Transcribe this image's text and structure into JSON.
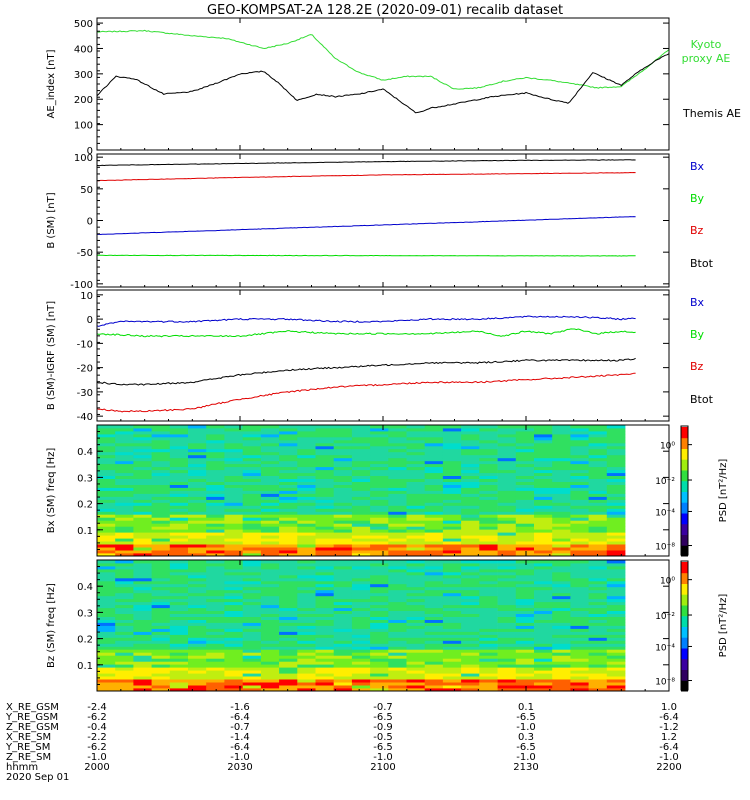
{
  "title": "GEO-KOMPSAT-2A 128.2E (2020-09-01) recalib dataset",
  "colors": {
    "black": "#000000",
    "red": "#e00000",
    "green": "#00dd00",
    "blue": "#0000cc",
    "kyoto": "#33dd33"
  },
  "chart_data": [
    {
      "type": "line",
      "ylabel": "AE_index [nT]",
      "ylim": [
        0,
        520
      ],
      "yticks": [
        0,
        100,
        200,
        300,
        400,
        500
      ],
      "xlim": [
        0,
        120
      ],
      "series": [
        {
          "name": "Kyoto proxy AE",
          "color": "#33dd33",
          "x": [
            0,
            10,
            20,
            27,
            35,
            40,
            45,
            50,
            55,
            60,
            65,
            70,
            75,
            80,
            85,
            90,
            95,
            100,
            105,
            110,
            115,
            120
          ],
          "y": [
            465,
            470,
            450,
            440,
            400,
            420,
            455,
            360,
            305,
            275,
            290,
            290,
            240,
            245,
            270,
            285,
            275,
            260,
            245,
            250,
            320,
            395
          ]
        },
        {
          "name": "Themis AE",
          "color": "#000000",
          "x": [
            0,
            4,
            8,
            14,
            20,
            26,
            30,
            35,
            38,
            42,
            46,
            50,
            55,
            60,
            63,
            67,
            70,
            76,
            83,
            90,
            95,
            99,
            104,
            110,
            113,
            117,
            120
          ],
          "y": [
            215,
            290,
            280,
            220,
            230,
            270,
            300,
            310,
            265,
            195,
            220,
            210,
            220,
            240,
            200,
            145,
            165,
            185,
            210,
            225,
            200,
            185,
            305,
            255,
            300,
            350,
            380
          ]
        }
      ],
      "legend": [
        {
          "text": "Kyoto",
          "color": "#33dd33"
        },
        {
          "text": "proxy AE",
          "color": "#33dd33"
        },
        {
          "text": "Themis AE",
          "color": "#000000"
        }
      ]
    },
    {
      "type": "line",
      "ylabel": "B (SM) [nT]",
      "ylim": [
        -105,
        105
      ],
      "yticks": [
        -100,
        -50,
        0,
        50,
        100
      ],
      "xlim": [
        0,
        120
      ],
      "series": [
        {
          "name": "Bx",
          "color": "#0000cc",
          "x": [
            0,
            120
          ],
          "y": [
            -22,
            8
          ]
        },
        {
          "name": "By",
          "color": "#00dd00",
          "x": [
            0,
            120
          ],
          "y": [
            -55,
            -56
          ]
        },
        {
          "name": "Bz",
          "color": "#e00000",
          "x": [
            0,
            30,
            60,
            90,
            120
          ],
          "y": [
            63,
            68,
            72,
            74,
            76
          ]
        },
        {
          "name": "Btot",
          "color": "#000000",
          "x": [
            0,
            30,
            60,
            90,
            120
          ],
          "y": [
            87,
            90,
            93,
            95,
            96
          ]
        }
      ],
      "legend": [
        {
          "text": "Bx",
          "color": "#0000cc"
        },
        {
          "text": "By",
          "color": "#00dd00"
        },
        {
          "text": "Bz",
          "color": "#e00000"
        },
        {
          "text": "Btot",
          "color": "#000000"
        }
      ]
    },
    {
      "type": "line",
      "ylabel": "B (SM)-IGRF (SM) [nT]",
      "ylim": [
        -42,
        12
      ],
      "yticks": [
        -40,
        -30,
        -20,
        -10,
        0,
        10
      ],
      "xlim": [
        0,
        120
      ],
      "series": [
        {
          "name": "Bx",
          "color": "#0000cc",
          "x": [
            0,
            5,
            10,
            20,
            30,
            40,
            50,
            60,
            70,
            80,
            90,
            95,
            100,
            110,
            120
          ],
          "y": [
            -3,
            -1,
            -1,
            -1,
            0,
            0,
            -1,
            -1,
            0,
            0,
            1,
            1,
            1,
            0,
            1
          ]
        },
        {
          "name": "By",
          "color": "#00dd00",
          "x": [
            0,
            10,
            20,
            30,
            40,
            50,
            60,
            70,
            80,
            85,
            90,
            95,
            100,
            105,
            110,
            115,
            120
          ],
          "y": [
            -6,
            -7,
            -7,
            -7,
            -5,
            -6,
            -6,
            -6,
            -5,
            -7,
            -5,
            -6,
            -4,
            -6,
            -5,
            -6,
            -5
          ]
        },
        {
          "name": "Bz",
          "color": "#e00000",
          "x": [
            0,
            5,
            10,
            20,
            30,
            40,
            50,
            60,
            70,
            80,
            90,
            100,
            110,
            115,
            120
          ],
          "y": [
            -37,
            -38,
            -38,
            -37,
            -33,
            -30,
            -28,
            -27,
            -26,
            -26,
            -25,
            -24,
            -23,
            -22,
            -23
          ]
        },
        {
          "name": "Btot",
          "color": "#000000",
          "x": [
            0,
            5,
            10,
            20,
            30,
            40,
            50,
            60,
            70,
            80,
            90,
            100,
            110,
            115,
            120
          ],
          "y": [
            -26,
            -27,
            -27,
            -26,
            -23,
            -21,
            -20,
            -19,
            -18,
            -18,
            -17,
            -17,
            -17,
            -16,
            -16
          ]
        }
      ],
      "legend": [
        {
          "text": "Bx",
          "color": "#0000cc"
        },
        {
          "text": "By",
          "color": "#00dd00"
        },
        {
          "text": "Bz",
          "color": "#e00000"
        },
        {
          "text": "Btot",
          "color": "#000000"
        }
      ]
    },
    {
      "type": "heatmap",
      "ylabel": "Bx (SM) freq [Hz]",
      "ylim": [
        0,
        0.5
      ],
      "yticks": [
        0.1,
        0.2,
        0.3,
        0.4
      ],
      "colorbar_label": "PSD [nT²/Hz]",
      "colorbar_ticks": [
        "10⁰",
        "10⁻²",
        "10⁻⁴",
        "10⁻⁸"
      ]
    },
    {
      "type": "heatmap",
      "ylabel": "Bz (SM) freq [Hz]",
      "ylim": [
        0,
        0.5
      ],
      "yticks": [
        0.1,
        0.2,
        0.3,
        0.4
      ],
      "colorbar_label": "PSD [nT²/Hz]",
      "colorbar_ticks": [
        "10⁰",
        "10⁻²",
        "10⁻⁴",
        "10⁻⁸"
      ]
    }
  ],
  "ephemeris": {
    "labels": [
      "X_RE_GSM",
      "Y_RE_GSM",
      "Z_RE_GSM",
      "X_RE_SM",
      "Y_RE_SM",
      "Z_RE_SM",
      "hhmm",
      "2020 Sep 01"
    ],
    "columns": [
      [
        "-2.4",
        "-6.2",
        "-0.4",
        "-2.2",
        "-6.2",
        "-1.0",
        "2000"
      ],
      [
        "-1.6",
        "-6.4",
        "-0.7",
        "-1.4",
        "-6.4",
        "-1.0",
        "2030"
      ],
      [
        "-0.7",
        "-6.5",
        "-0.9",
        "-0.5",
        "-6.5",
        "-1.0",
        "2100"
      ],
      [
        "0.1",
        "-6.5",
        "-1.0",
        "0.3",
        "-6.5",
        "-1.0",
        "2130"
      ],
      [
        "1.0",
        "-6.4",
        "-1.2",
        "1.2",
        "-6.4",
        "-1.0",
        "2200"
      ]
    ]
  }
}
